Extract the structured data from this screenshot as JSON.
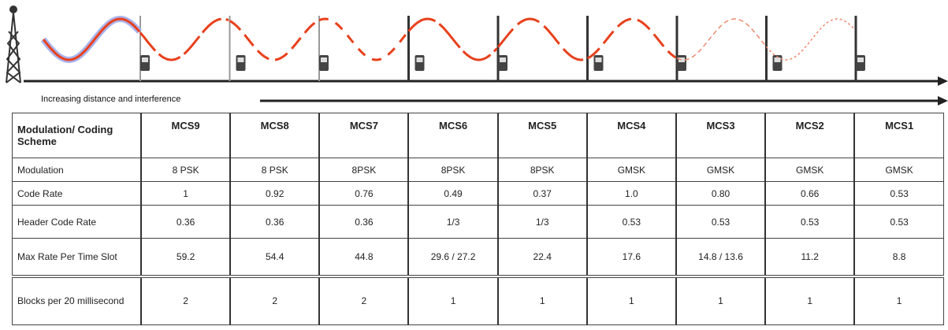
{
  "caption": "Increasing distance and interference",
  "table": {
    "header": [
      "Modulation/ Coding Scheme",
      "MCS9",
      "MCS8",
      "MCS7",
      "MCS6",
      "MCS5",
      "MCS4",
      "MCS3",
      "MCS2",
      "MCS1"
    ],
    "rows": [
      [
        "Modulation",
        "8 PSK",
        "8 PSK",
        "8PSK",
        "8PSK",
        "8PSK",
        "GMSK",
        "GMSK",
        "GMSK",
        "GMSK"
      ],
      [
        "Code Rate",
        "1",
        "0.92",
        "0.76",
        "0.49",
        "0.37",
        "1.0",
        "0.80",
        "0.66",
        "0.53"
      ],
      [
        "Header Code Rate",
        "0.36",
        "0.36",
        "0.36",
        "1/3",
        "1/3",
        "0.53",
        "0.53",
        "0.53",
        "0.53"
      ],
      [
        "Max Rate Per Time Slot",
        "59.2",
        "54.4",
        "44.8",
        "29.6 / 27.2",
        "22.4",
        "17.6",
        "14.8 / 13.6",
        "11.2",
        "8.8"
      ],
      [
        "Blocks per 20 millisecond",
        "2",
        "2",
        "2",
        "1",
        "1",
        "1",
        "1",
        "1",
        "1"
      ]
    ]
  }
}
